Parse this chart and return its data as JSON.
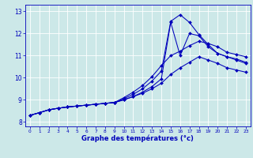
{
  "title": "",
  "xlabel": "Graphe des températures (°c)",
  "ylabel": "",
  "bg_color": "#cce8e8",
  "line_color": "#0000bb",
  "grid_color": "#ffffff",
  "xlim": [
    -0.5,
    23.5
  ],
  "ylim": [
    7.8,
    13.3
  ],
  "xticks": [
    0,
    1,
    2,
    3,
    4,
    5,
    6,
    7,
    8,
    9,
    10,
    11,
    12,
    13,
    14,
    15,
    16,
    17,
    18,
    19,
    20,
    21,
    22,
    23
  ],
  "yticks": [
    8,
    9,
    10,
    11,
    12,
    13
  ],
  "lines": [
    {
      "x": [
        0,
        1,
        2,
        3,
        4,
        5,
        6,
        7,
        8,
        9,
        10,
        11,
        12,
        13,
        14,
        15,
        16,
        17,
        18,
        19,
        20,
        21,
        22,
        23
      ],
      "y": [
        8.3,
        8.42,
        8.55,
        8.62,
        8.68,
        8.72,
        8.76,
        8.8,
        8.84,
        8.88,
        9.0,
        9.15,
        9.3,
        9.5,
        9.75,
        10.15,
        10.45,
        10.7,
        10.95,
        10.8,
        10.65,
        10.45,
        10.35,
        10.25
      ]
    },
    {
      "x": [
        0,
        1,
        2,
        3,
        4,
        5,
        6,
        7,
        8,
        9,
        10,
        11,
        12,
        13,
        14,
        15,
        16,
        17,
        18,
        19,
        20,
        21,
        22,
        23
      ],
      "y": [
        8.3,
        8.42,
        8.55,
        8.62,
        8.68,
        8.72,
        8.76,
        8.8,
        8.84,
        8.88,
        9.05,
        9.25,
        9.5,
        9.85,
        10.3,
        12.55,
        12.85,
        12.5,
        11.95,
        11.5,
        11.1,
        10.95,
        10.85,
        10.7
      ]
    },
    {
      "x": [
        0,
        1,
        2,
        3,
        4,
        5,
        6,
        7,
        8,
        9,
        10,
        11,
        12,
        13,
        14,
        15,
        16,
        17,
        18,
        19,
        20,
        21,
        22,
        23
      ],
      "y": [
        8.3,
        8.42,
        8.55,
        8.62,
        8.68,
        8.72,
        8.76,
        8.8,
        8.84,
        8.88,
        9.1,
        9.35,
        9.65,
        10.05,
        10.55,
        11.0,
        11.2,
        11.45,
        11.65,
        11.55,
        11.4,
        11.15,
        11.05,
        10.95
      ]
    },
    {
      "x": [
        0,
        1,
        2,
        3,
        4,
        5,
        6,
        7,
        8,
        9,
        10,
        11,
        12,
        13,
        14,
        15,
        16,
        17,
        18,
        19,
        20,
        21,
        22,
        23
      ],
      "y": [
        8.3,
        8.42,
        8.55,
        8.62,
        8.68,
        8.72,
        8.76,
        8.8,
        8.84,
        8.88,
        9.0,
        9.15,
        9.35,
        9.6,
        9.95,
        12.5,
        11.0,
        12.0,
        11.9,
        11.4,
        11.1,
        10.95,
        10.8,
        10.65
      ]
    }
  ]
}
